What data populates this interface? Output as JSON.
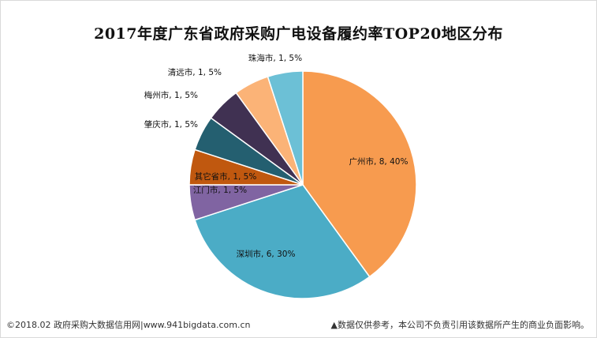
{
  "chart_data": {
    "type": "pie",
    "title": "2017年度广东省政府采购广电设备履约率TOP20地区分布",
    "slices": [
      {
        "label": "广州市",
        "value": 8,
        "percent": "40%",
        "color": "#f79b4f"
      },
      {
        "label": "深圳市",
        "value": 6,
        "percent": "30%",
        "color": "#4bacc6"
      },
      {
        "label": "江门市",
        "value": 1,
        "percent": "5%",
        "color": "#8064a2"
      },
      {
        "label": "其它省市",
        "value": 1,
        "percent": "5%",
        "color": "#c0580f"
      },
      {
        "label": "肇庆市",
        "value": 1,
        "percent": "5%",
        "color": "#245f70"
      },
      {
        "label": "梅州市",
        "value": 1,
        "percent": "5%",
        "color": "#403152"
      },
      {
        "label": "清远市",
        "value": 1,
        "percent": "5%",
        "color": "#fbb377"
      },
      {
        "label": "珠海市",
        "value": 1,
        "percent": "5%",
        "color": "#6cc0d6"
      }
    ]
  },
  "footer": {
    "left": "©2018.02 政府采购大数据信用网|www.941bigdata.com.cn",
    "right": "▲数据仅供参考，本公司不负责引用该数据所产生的商业负面影响。"
  }
}
